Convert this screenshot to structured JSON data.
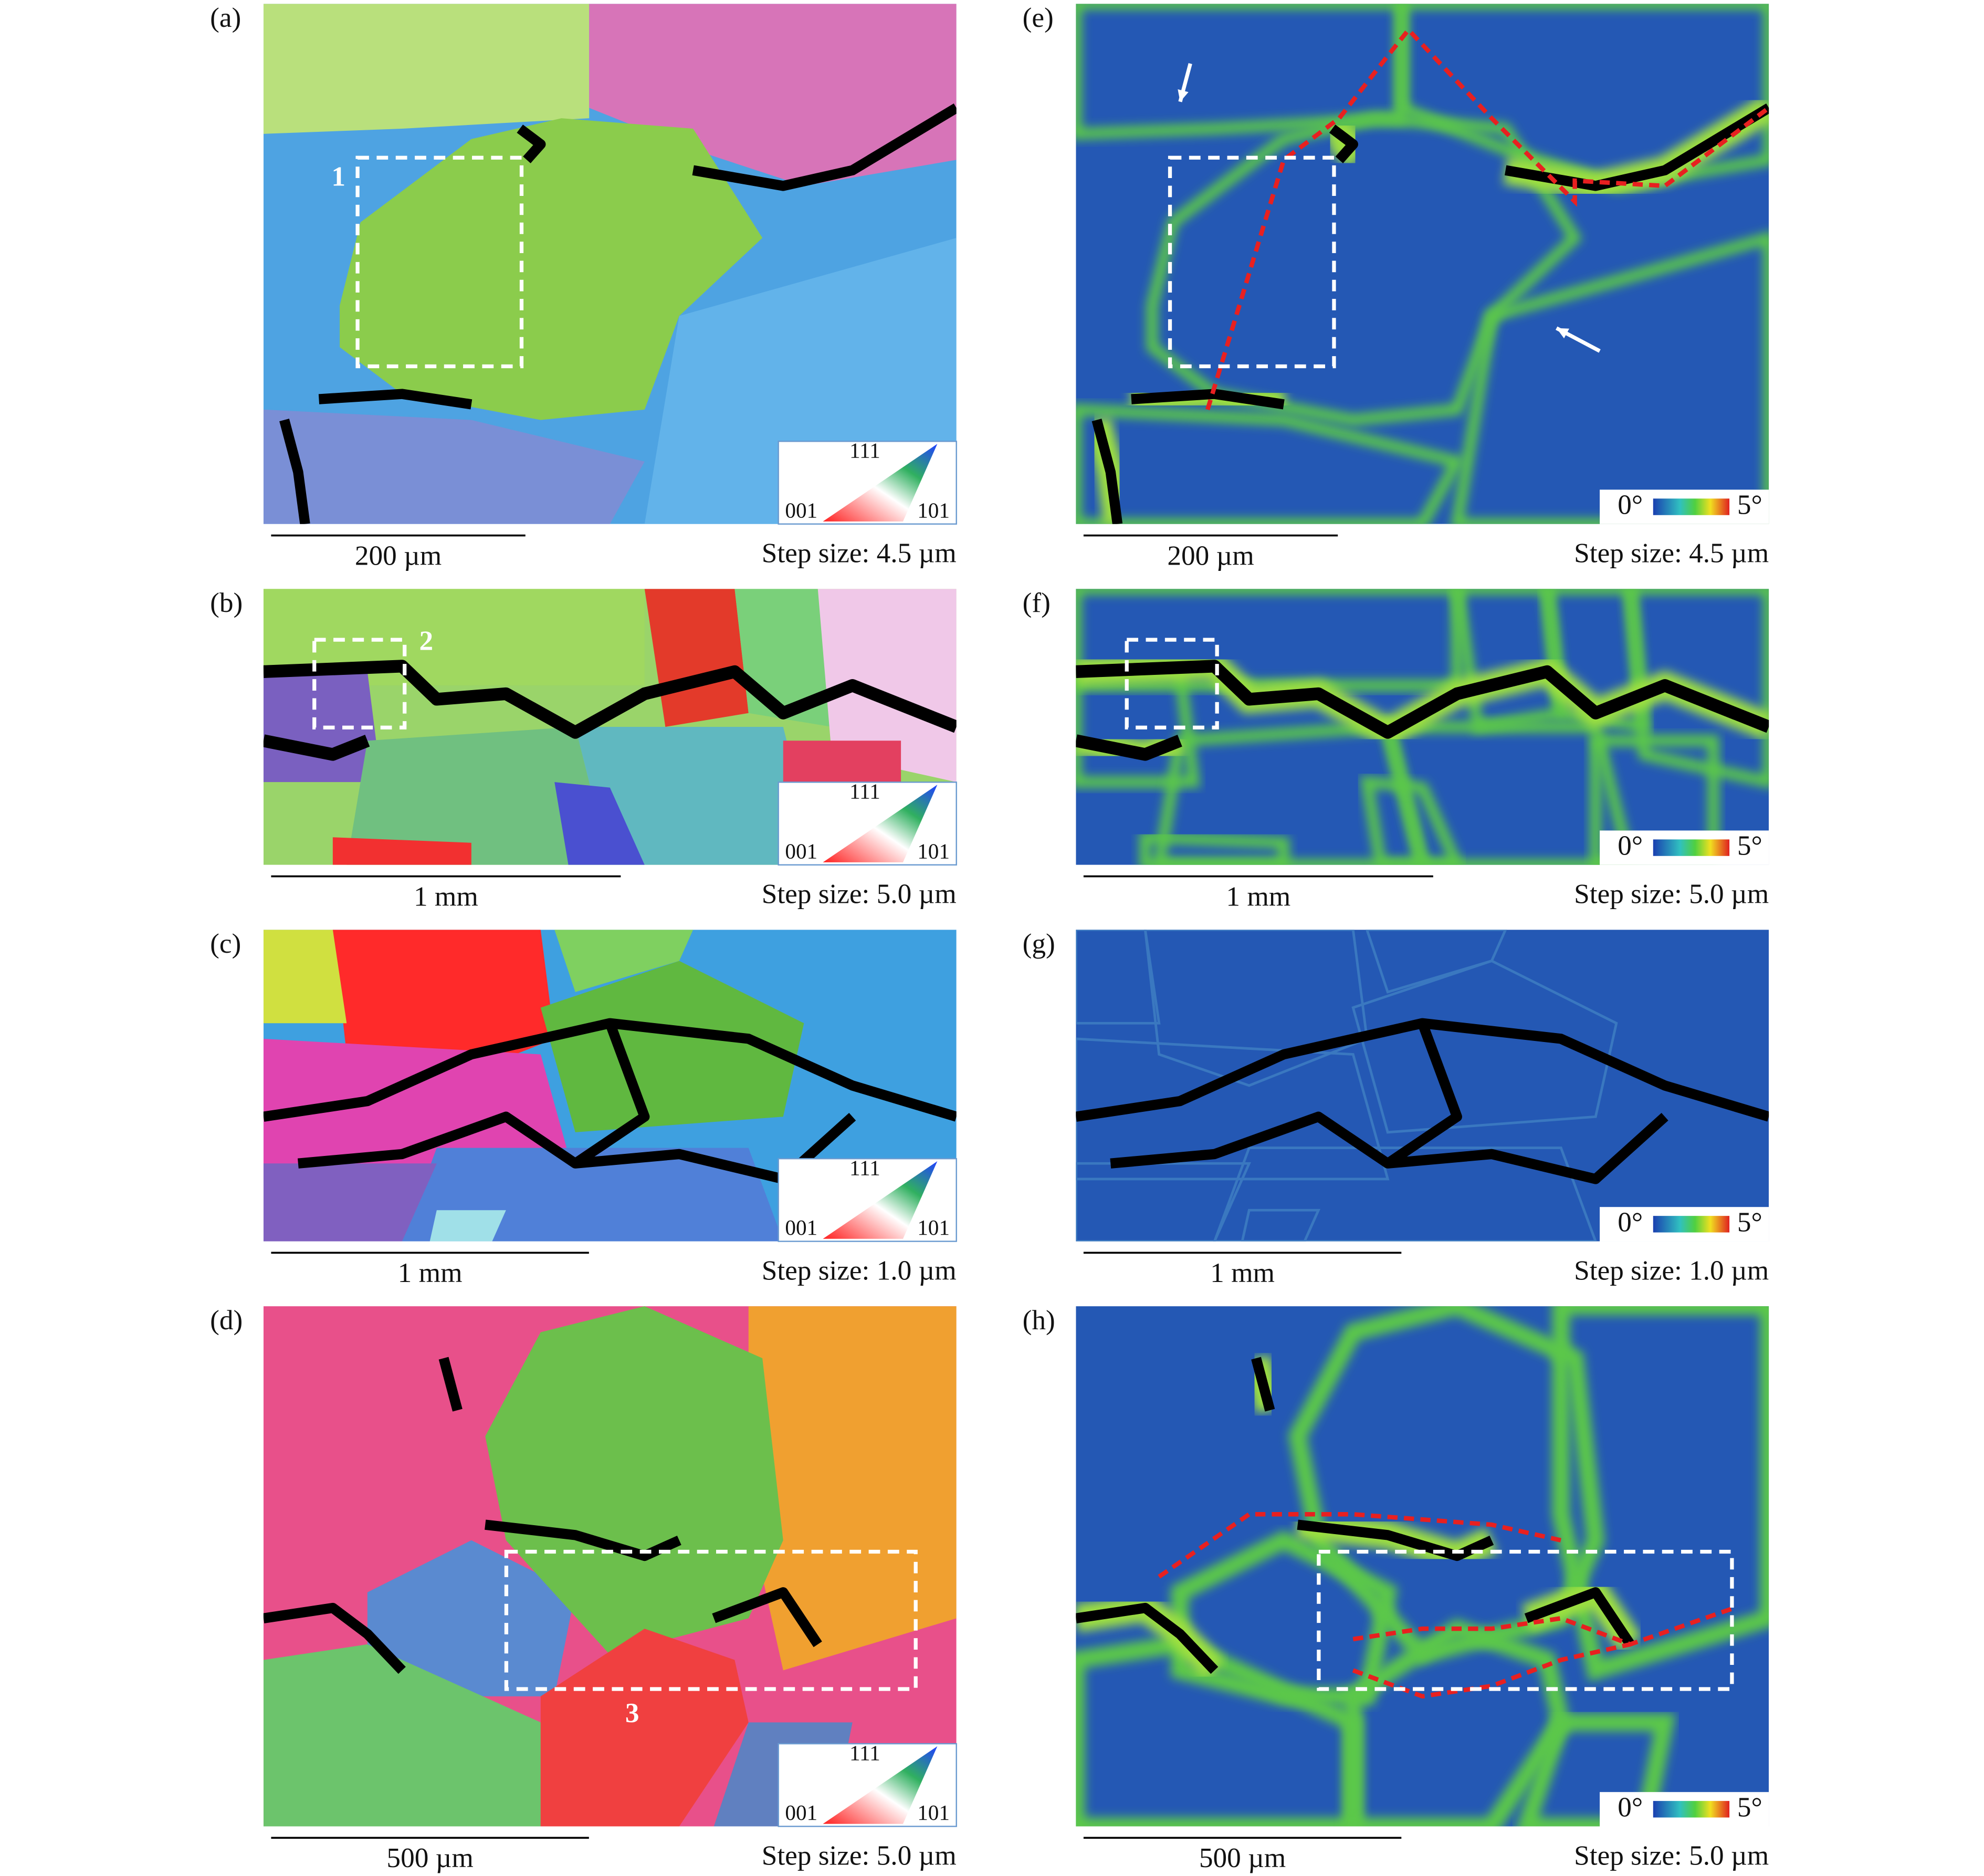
{
  "panels": [
    {
      "label": "(a)",
      "region": "1",
      "scale_bar": "200 µm",
      "step_size": "Step size: 4.5 µm",
      "legend": [
        "111",
        "001",
        "101"
      ]
    },
    {
      "label": "(b)",
      "region": "2",
      "scale_bar": "1 mm",
      "step_size": "Step size: 5.0 µm",
      "legend": [
        "111",
        "001",
        "101"
      ]
    },
    {
      "label": "(c)",
      "scale_bar": "1 mm",
      "step_size": "Step size: 1.0 µm",
      "legend": [
        "111",
        "001",
        "101"
      ]
    },
    {
      "label": "(d)",
      "region": "3",
      "scale_bar": "500 µm",
      "step_size": "Step size: 5.0 µm",
      "legend": [
        "111",
        "001",
        "101"
      ]
    },
    {
      "label": "(e)",
      "scale_bar": "200 µm",
      "step_size": "Step size: 4.5 µm",
      "legend": [
        "0°",
        "5°"
      ]
    },
    {
      "label": "(f)",
      "scale_bar": "1 mm",
      "step_size": "Step size: 5.0 µm",
      "legend": [
        "0°",
        "5°"
      ]
    },
    {
      "label": "(g)",
      "scale_bar": "1 mm",
      "step_size": "Step size: 1.0 µm",
      "legend": [
        "0°",
        "5°"
      ]
    },
    {
      "label": "(h)",
      "scale_bar": "500 µm",
      "step_size": "Step size: 5.0 µm",
      "legend": [
        "0°",
        "5°"
      ]
    }
  ]
}
